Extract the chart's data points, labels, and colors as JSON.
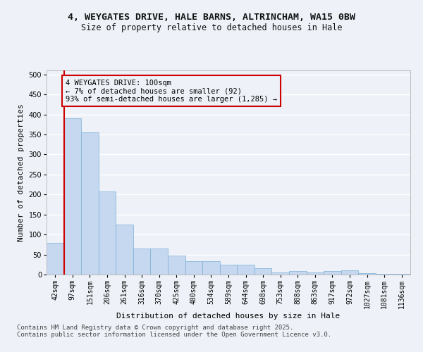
{
  "title_line1": "4, WEYGATES DRIVE, HALE BARNS, ALTRINCHAM, WA15 0BW",
  "title_line2": "Size of property relative to detached houses in Hale",
  "xlabel": "Distribution of detached houses by size in Hale",
  "ylabel": "Number of detached properties",
  "bar_color": "#c5d8f0",
  "bar_edge_color": "#7aafd4",
  "background_color": "#eef2f8",
  "grid_color": "#ffffff",
  "annotation_box_color": "#cc0000",
  "vline_color": "#cc0000",
  "categories": [
    "42sqm",
    "97sqm",
    "151sqm",
    "206sqm",
    "261sqm",
    "316sqm",
    "370sqm",
    "425sqm",
    "480sqm",
    "534sqm",
    "589sqm",
    "644sqm",
    "698sqm",
    "753sqm",
    "808sqm",
    "863sqm",
    "917sqm",
    "972sqm",
    "1027sqm",
    "1081sqm",
    "1136sqm"
  ],
  "values": [
    80,
    390,
    355,
    207,
    125,
    65,
    65,
    47,
    33,
    33,
    25,
    25,
    15,
    5,
    8,
    5,
    8,
    10,
    3,
    1,
    2
  ],
  "ylim": [
    0,
    510
  ],
  "yticks": [
    0,
    50,
    100,
    150,
    200,
    250,
    300,
    350,
    400,
    450,
    500
  ],
  "vline_x": 0.5,
  "annotation_text": "4 WEYGATES DRIVE: 100sqm\n← 7% of detached houses are smaller (92)\n93% of semi-detached houses are larger (1,285) →",
  "footer_text": "Contains HM Land Registry data © Crown copyright and database right 2025.\nContains public sector information licensed under the Open Government Licence v3.0.",
  "title_fontsize": 9.5,
  "subtitle_fontsize": 8.5,
  "axis_label_fontsize": 8,
  "tick_fontsize": 7,
  "annotation_fontsize": 7.5,
  "footer_fontsize": 6.5
}
